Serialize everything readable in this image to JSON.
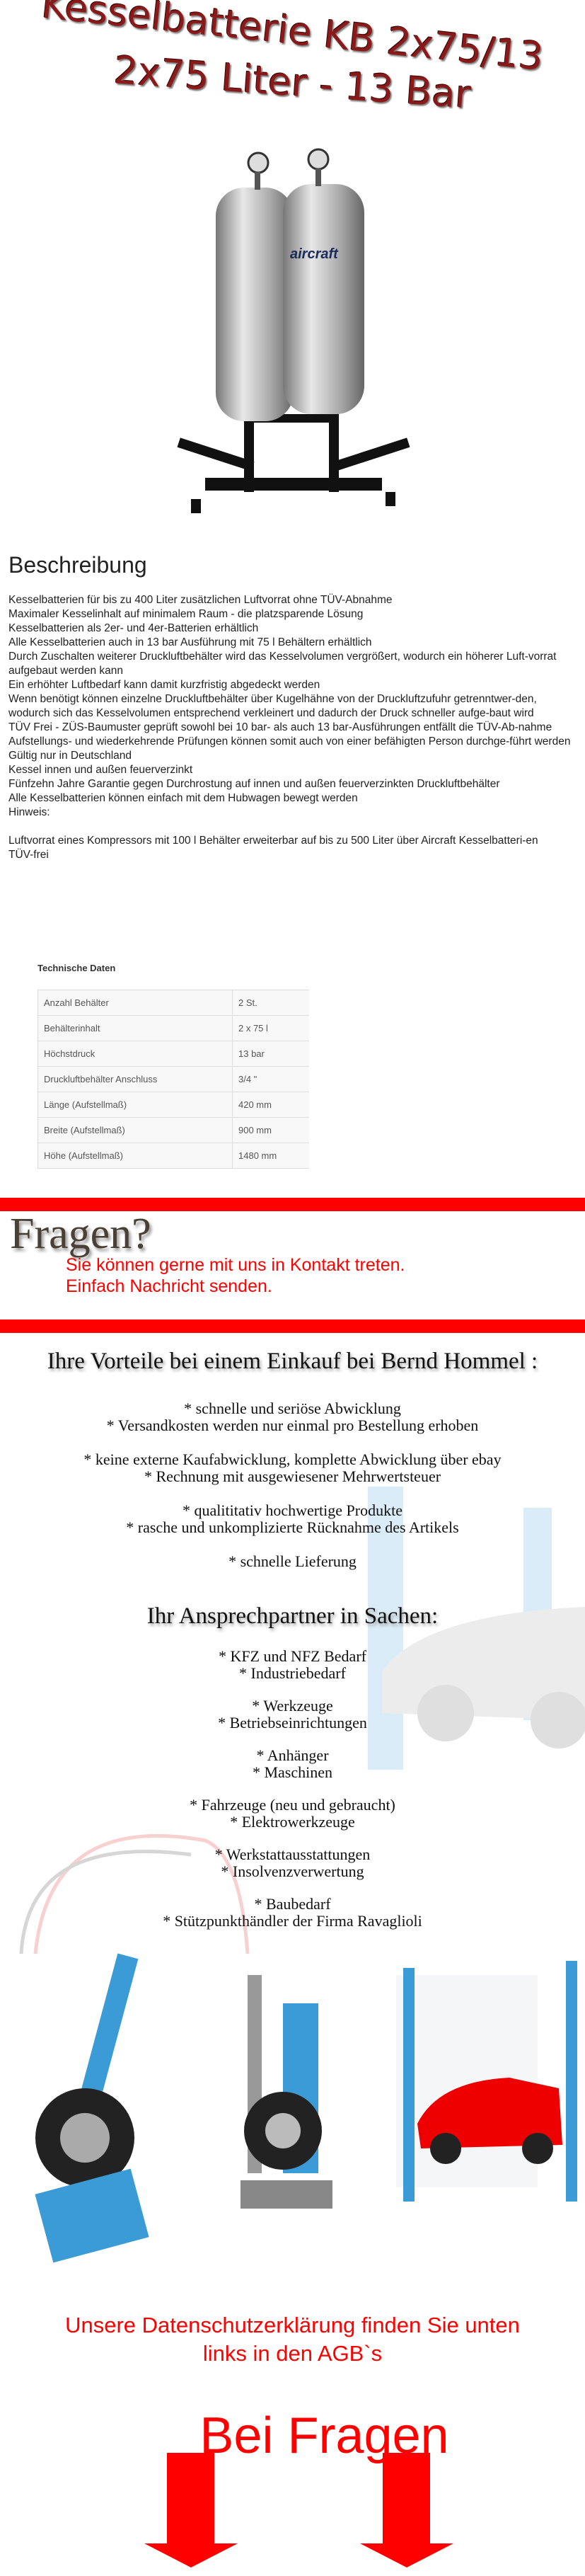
{
  "title": {
    "line1": "Kesselbatterie KB 2x75/13",
    "line2": "2x75 Liter - 13 Bar"
  },
  "product_image": {
    "brand": "aircraft",
    "alt": "Kesselbatterie"
  },
  "description": {
    "heading": "Beschreibung",
    "lines": [
      "Kesselbatterien für bis zu 400 Liter zusätzlichen Luftvorrat ohne TÜV-Abnahme",
      "Maximaler Kesselinhalt auf minimalem Raum - die platzsparende Lösung",
      "Kesselbatterien als 2er- und 4er-Batterien erhältlich",
      "Alle Kesselbatterien auch in 13 bar Ausführung mit 75 l Behältern erhältlich",
      "Durch Zuschalten weiterer Druckluftbehälter wird das Kesselvolumen vergrößert, wodurch ein höherer Luft-vorrat aufgebaut werden kann",
      "Ein erhöhter Luftbedarf kann damit kurzfristig abgedeckt werden",
      "Wenn benötigt können einzelne Druckluftbehälter über Kugelhähne von der Druckluftzufuhr getrenntwer-den, wodurch sich das Kesselvolumen entsprechend verkleinert und dadurch der Druck schneller aufge-baut wird",
      "TÜV Frei - ZÜS-Baumuster geprüft sowohl bei 10 bar- als auch 13 bar-Ausführungen entfällt die TÜV-Ab-nahme",
      "Aufstellungs- und wiederkehrende Prüfungen können somit auch von einer befähigten Person durchge-führt werden",
      "Gültig nur in Deutschland",
      "Kessel innen und außen feuerverzinkt",
      "Fünfzehn Jahre Garantie gegen Durchrostung auf innen und außen feuerverzinkten Druckluftbehälter",
      "Alle Kesselbatterien können einfach mit dem Hubwagen bewegt werden",
      "Hinweis:",
      "",
      "Luftvorrat eines Kompressors mit 100 l Behälter erweiterbar auf bis zu 500 Liter über Aircraft Kesselbatteri-en",
      "TÜV-frei"
    ]
  },
  "tech": {
    "heading": "Technische Daten",
    "rows": [
      {
        "k": "Anzahl Behälter",
        "v": "2 St."
      },
      {
        "k": "Behälterinhalt",
        "v": "2 x 75 l"
      },
      {
        "k": "Höchstdruck",
        "v": "13 bar"
      },
      {
        "k": "Druckluftbehälter Anschluss",
        "v": "3/4 \""
      },
      {
        "k": "Länge (Aufstellmaß)",
        "v": "420 mm"
      },
      {
        "k": "Breite (Aufstellmaß)",
        "v": "900 mm"
      },
      {
        "k": "Höhe (Aufstellmaß)",
        "v": "1480 mm"
      }
    ]
  },
  "fragen": {
    "heading": "Fragen?",
    "line1": "Sie können gerne mit uns in Kontakt treten.",
    "line2": "Einfach Nachricht senden."
  },
  "vorteile": {
    "heading": "Ihre Vorteile bei einem Einkauf bei Bernd Hommel :",
    "items": [
      "* schnelle und seriöse Abwicklung",
      "* Versandkosten werden nur einmal pro Bestellung erhoben",
      "* keine externe Kaufabwicklung, komplette Abwicklung über ebay",
      "* Rechnung mit ausgewiesener Mehrwertsteuer",
      "* qualititativ hochwertige Produkte",
      "* rasche und unkomplizierte Rücknahme des Artikels",
      "* schnelle Lieferung"
    ]
  },
  "partner": {
    "heading": "Ihr Ansprechpartner in Sachen:",
    "items": [
      "* KFZ und NFZ Bedarf",
      "* Industriebedarf",
      "* Werkzeuge",
      "* Betriebseinrichtungen",
      "* Anhänger",
      "* Maschinen",
      "* Fahrzeuge (neu und gebraucht)",
      "* Elektrowerkzeuge",
      "* Werkstattausstattungen",
      "* Insolvenzverwertung",
      "* Baubedarf",
      "* Stützpunkthändler der Firma Ravaglioli"
    ]
  },
  "privacy": {
    "line1": "Unsere Datenschutzerklärung finden Sie unten",
    "line2": "links in den AGB`s"
  },
  "bei_fragen": "Bei Fragen",
  "colors": {
    "accent": "#ff0000",
    "title": "#8a1a1a",
    "lift_blue": "#3a9bd6"
  }
}
